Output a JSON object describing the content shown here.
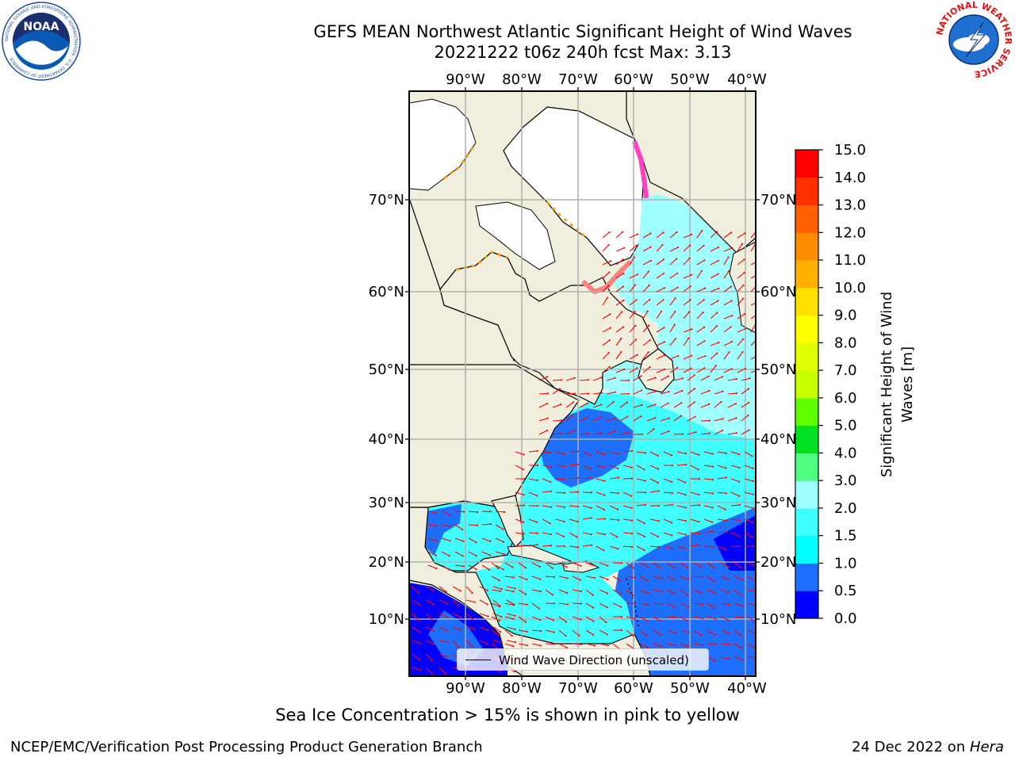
{
  "header": {
    "title_line1": "GEFS MEAN Northwest Atlantic Significant Height of Wind Waves",
    "title_line2": "20221222 t06z 240h fcst   Max: 3.13"
  },
  "logos": {
    "noaa_text": "NOAA",
    "noaa_ring_text": "NATIONAL OCEANIC AND ATMOSPHERIC ADMINISTRATION · U.S. DEPARTMENT OF COMMERCE",
    "nws_ring_text": "NATIONAL WEATHER SERVICE"
  },
  "map": {
    "lon_ticks": [
      "90°W",
      "80°W",
      "70°W",
      "60°W",
      "50°W",
      "40°W"
    ],
    "lat_ticks": [
      "70°N",
      "60°N",
      "50°N",
      "40°N",
      "30°N",
      "20°N",
      "10°N"
    ],
    "legend_label": "Wind Wave Direction (unscaled)",
    "colors": {
      "land": "#f0eedc",
      "ice_free_land": "#ffffff",
      "vector": "#ff0000",
      "grid": "#b0b0b0"
    }
  },
  "colorbar": {
    "label_line1": "Significant Height of Wind",
    "label_line2": "Waves [m]",
    "ticks": [
      "0.0",
      "0.5",
      "1.0",
      "1.5",
      "2.0",
      "3.0",
      "4.0",
      "5.0",
      "6.0",
      "7.0",
      "8.0",
      "9.0",
      "10.0",
      "11.0",
      "12.0",
      "13.0",
      "14.0",
      "15.0"
    ],
    "colors": [
      "#0000ff",
      "#1f6fff",
      "#00ffff",
      "#40ffff",
      "#a0ffff",
      "#50ff80",
      "#00e020",
      "#60ff00",
      "#c8ff00",
      "#e0ff00",
      "#ffff00",
      "#ffe000",
      "#ffb000",
      "#ff8c00",
      "#ff6000",
      "#ff3000",
      "#ff0000"
    ]
  },
  "note": "Sea Ice Concentration > 15% is shown in pink to yellow",
  "footer": {
    "left": "NCEP/EMC/Verification Post Processing Product Generation Branch",
    "right_prefix": "24 Dec 2022 on ",
    "right_host": "Hera"
  }
}
